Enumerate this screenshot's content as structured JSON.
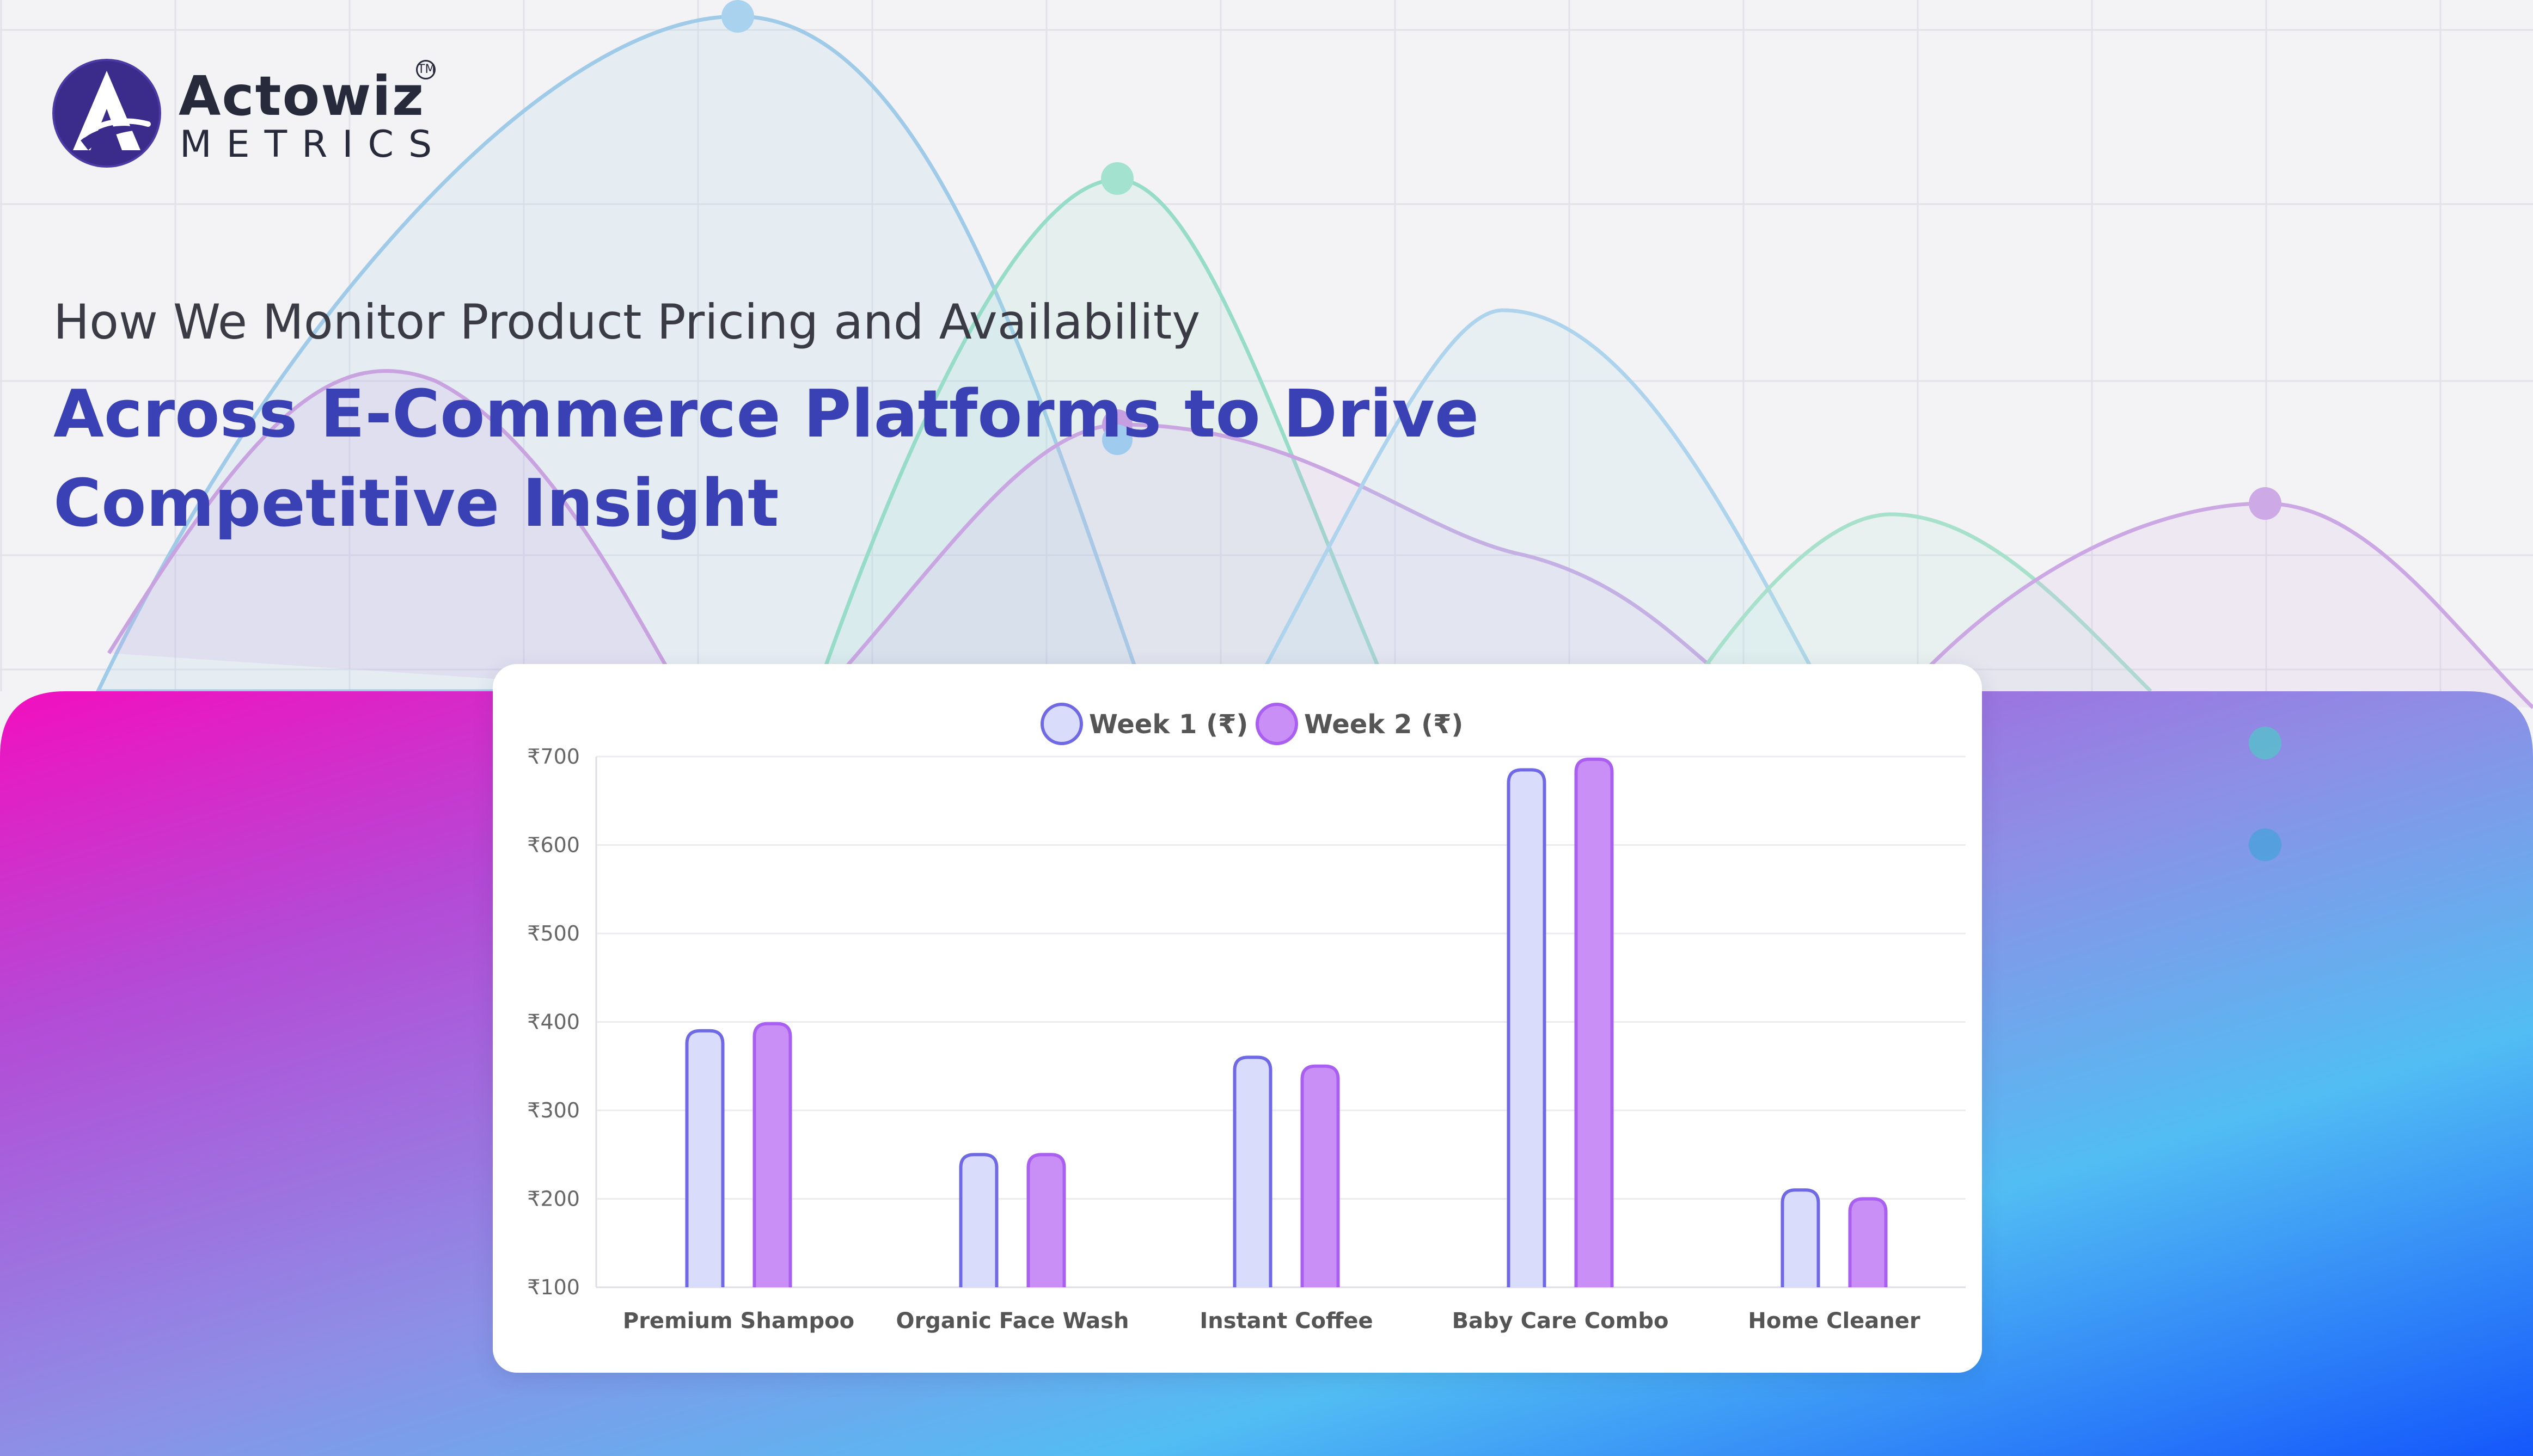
{
  "brand": {
    "name": "Actowiz",
    "trademark": "TM",
    "sub": "METRICS"
  },
  "hero": {
    "subtitle": "How We Monitor Product Pricing and Availability",
    "headline": "Across E-Commerce Platforms to Drive Competitive Insight"
  },
  "colors": {
    "headline": "#3a41b5",
    "week1_fill": "#dadcfb",
    "week1_stroke": "#7069e6",
    "week2_fill": "#c98ff6",
    "week2_stroke": "#a95fef",
    "gradient_start": "#f20fbe",
    "gradient_mid": "#52bdf3",
    "gradient_end": "#1457fb"
  },
  "chart_data": {
    "type": "bar",
    "categories": [
      "Premium Shampoo",
      "Organic Face Wash",
      "Instant Coffee",
      "Baby Care Combo",
      "Home Cleaner"
    ],
    "series": [
      {
        "name": "Week 1 (₹)",
        "values": [
          390,
          250,
          360,
          685,
          210
        ]
      },
      {
        "name": "Week 2 (₹)",
        "values": [
          398,
          250,
          350,
          697,
          200
        ]
      }
    ],
    "yticks": [
      "₹100",
      "₹200",
      "₹300",
      "₹400",
      "₹500",
      "₹600",
      "₹700"
    ],
    "ylim": [
      100,
      700
    ],
    "legend": "top-center",
    "grid": true
  }
}
